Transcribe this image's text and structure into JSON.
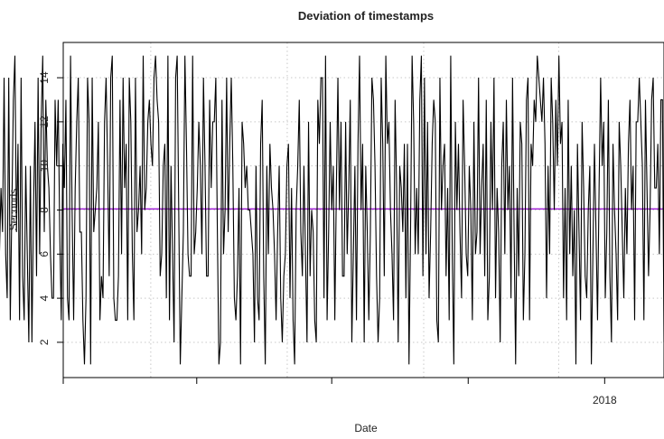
{
  "chart_data": {
    "type": "line",
    "title": "Deviation of timestamps",
    "xlabel": "Date",
    "ylabel": "Seconds",
    "x_range": [
      "2017-01-01",
      "2018-02-10"
    ],
    "ylim": [
      0.4,
      15.6
    ],
    "x_ticks": [
      {
        "date": "2017-01-01",
        "label": ""
      },
      {
        "date": "2017-04-01",
        "label": ""
      },
      {
        "date": "2017-07-01",
        "label": ""
      },
      {
        "date": "2017-10-01",
        "label": ""
      },
      {
        "date": "2018-01-01",
        "label": "2018"
      }
    ],
    "y_ticks": [
      2,
      4,
      6,
      8,
      10,
      12,
      14
    ],
    "x_gridlines_at": [
      "2017-03-01",
      "2017-06-01",
      "2017-09-01",
      "2017-12-01"
    ],
    "grid": "dotted",
    "line_color": "#000000",
    "reference_line": {
      "y": 8.05,
      "color": "#9400D3"
    },
    "series": [
      {
        "start_date": "2016-10-25",
        "end_date": "2018-02-10",
        "values": [
          6,
          5,
          5,
          4,
          7,
          1,
          4,
          9,
          9,
          9,
          10,
          11,
          5,
          6,
          4,
          2,
          5,
          9,
          12,
          8,
          3,
          1,
          10,
          12,
          6,
          9,
          7,
          14,
          6,
          4,
          14,
          3,
          8,
          13,
          15,
          7,
          11,
          3,
          14,
          5,
          3,
          10,
          6,
          2,
          10,
          2,
          8,
          12,
          5,
          14,
          6,
          12,
          15,
          7,
          13,
          10,
          9,
          6,
          4,
          4,
          13,
          10,
          13,
          7,
          3,
          11,
          9,
          13,
          4,
          3,
          15,
          8,
          3,
          9,
          12,
          14,
          7,
          7,
          3,
          1,
          4,
          14,
          12,
          1,
          14,
          7,
          8,
          9,
          12,
          3,
          5,
          4,
          12,
          14,
          10,
          5,
          14,
          15,
          4,
          3,
          3,
          5,
          13,
          6,
          14,
          9,
          11,
          3,
          14,
          12,
          6,
          3,
          14,
          7,
          8,
          10,
          6,
          15,
          8,
          9,
          12,
          13,
          11,
          10,
          14,
          15,
          13,
          12,
          5,
          6,
          10,
          11,
          4,
          15,
          3,
          10,
          6,
          2,
          14,
          15,
          8,
          1,
          4,
          7,
          15,
          11,
          6,
          5,
          5,
          15,
          6,
          7,
          9,
          12,
          10,
          6,
          14,
          10,
          5,
          5,
          13,
          9,
          12,
          12,
          14,
          7,
          1,
          2,
          13,
          6,
          8,
          14,
          7,
          11,
          14,
          10,
          4,
          3,
          5,
          9,
          1,
          12,
          11,
          9,
          10,
          8,
          8,
          7,
          6,
          2,
          10,
          4,
          3,
          11,
          13,
          5,
          1,
          10,
          6,
          11,
          9,
          8,
          6,
          3,
          7,
          10,
          4,
          2,
          5,
          6,
          10,
          11,
          4,
          9,
          3,
          1,
          8,
          10,
          13,
          7,
          5,
          10,
          6,
          2,
          12,
          5,
          8,
          7,
          3,
          2,
          13,
          11,
          14,
          14,
          4,
          15,
          3,
          7,
          12,
          8,
          10,
          3,
          9,
          14,
          8,
          12,
          5,
          5,
          12,
          6,
          9,
          13,
          2,
          6,
          10,
          3,
          11,
          15,
          8,
          11,
          2,
          10,
          7,
          3,
          7,
          14,
          13,
          10,
          5,
          2,
          4,
          14,
          11,
          5,
          15,
          11,
          12,
          8,
          6,
          3,
          13,
          9,
          2,
          10,
          9,
          7,
          11,
          4,
          11,
          1,
          7,
          15,
          12,
          6,
          9,
          6,
          13,
          15,
          5,
          14,
          6,
          12,
          4,
          7,
          11,
          13,
          12,
          3,
          2,
          14,
          8,
          10,
          11,
          5,
          9,
          3,
          15,
          6,
          1,
          12,
          8,
          11,
          7,
          4,
          13,
          10,
          6,
          5,
          10,
          8,
          3,
          12,
          6,
          7,
          14,
          6,
          9,
          11,
          5,
          13,
          3,
          5,
          12,
          8,
          14,
          4,
          9,
          7,
          2,
          10,
          12,
          6,
          13,
          8,
          10,
          4,
          14,
          7,
          1,
          9,
          5,
          12,
          11,
          3,
          6,
          13,
          14,
          3,
          11,
          10,
          13,
          12,
          15,
          14,
          13,
          12,
          14,
          11,
          4,
          10,
          6,
          14,
          12,
          8,
          13,
          10,
          15,
          11,
          12,
          4,
          9,
          3,
          13,
          6,
          10,
          5,
          8,
          1,
          11,
          7,
          3,
          12,
          9,
          5,
          4,
          8,
          10,
          1,
          6,
          11,
          7,
          3,
          9,
          14,
          10,
          12,
          4,
          7,
          13,
          5,
          2,
          11,
          8,
          6,
          3,
          12,
          10,
          7,
          4,
          9,
          6,
          11,
          13,
          8,
          10,
          3,
          12,
          12,
          14,
          12,
          10,
          3,
          13,
          9,
          5,
          8,
          13,
          14,
          9,
          9,
          11,
          6,
          13,
          13,
          2
        ]
      }
    ]
  }
}
